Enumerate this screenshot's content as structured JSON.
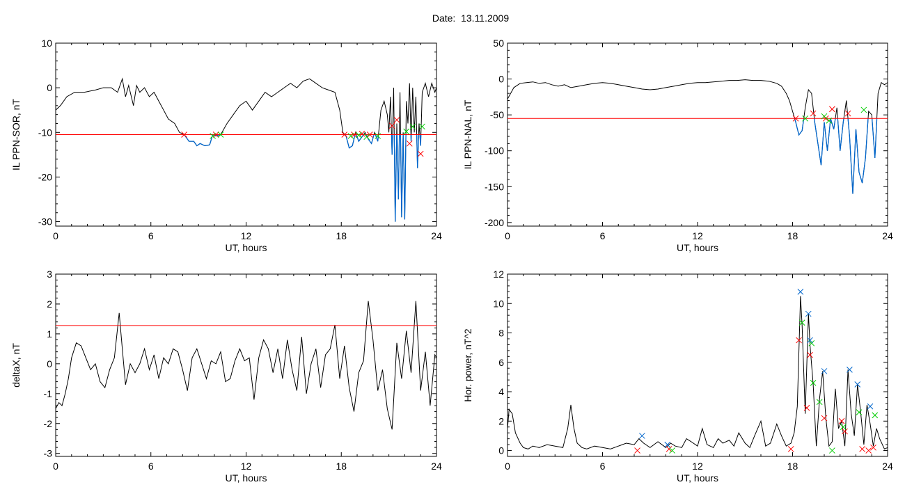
{
  "figure": {
    "title": "Date:  13.11.2009"
  },
  "chart_data": [
    {
      "type": "line",
      "ylabel": "IL PPN-SOR, nT",
      "xlabel": "UT, hours",
      "xlim": [
        0,
        24
      ],
      "ylim": [
        -31,
        10
      ],
      "xticks": [
        0,
        6,
        12,
        18,
        24
      ],
      "yticks": [
        -30,
        -20,
        -10,
        0,
        10
      ],
      "threshold": -10.5,
      "threshold_color": "#ff0000",
      "line_color": "#000000",
      "below_color": "#0066cc",
      "x": [
        0,
        0.3,
        0.7,
        1.2,
        1.8,
        2.5,
        3,
        3.5,
        3.9,
        4.2,
        4.4,
        4.6,
        4.9,
        5.1,
        5.3,
        5.6,
        5.9,
        6.2,
        6.5,
        6.8,
        7.1,
        7.5,
        7.8,
        8.1,
        8.4,
        8.7,
        8.9,
        9.1,
        9.4,
        9.7,
        9.9,
        10.1,
        10.4,
        10.8,
        11.2,
        11.6,
        12,
        12.4,
        12.8,
        13.2,
        13.6,
        14,
        14.4,
        14.8,
        15.2,
        15.6,
        16,
        16.4,
        16.8,
        17.2,
        17.6,
        17.9,
        18.1,
        18.3,
        18.5,
        18.7,
        18.9,
        19.1,
        19.3,
        19.5,
        19.7,
        19.9,
        20.1,
        20.3,
        20.5,
        20.7,
        20.9,
        21,
        21.1,
        21.2,
        21.3,
        21.4,
        21.5,
        21.6,
        21.7,
        21.8,
        21.9,
        22,
        22.1,
        22.2,
        22.3,
        22.4,
        22.5,
        22.6,
        22.7,
        22.8,
        22.9,
        23,
        23.1,
        23.3,
        23.5,
        23.7,
        23.9,
        24
      ],
      "y": [
        -5,
        -4,
        -2,
        -1,
        -1,
        -0.5,
        0,
        0,
        -1,
        2,
        -2,
        0.5,
        -4,
        0.5,
        -1,
        0,
        -2,
        -1,
        -3,
        -5,
        -7,
        -8,
        -10,
        -10.5,
        -12,
        -12,
        -13,
        -12.5,
        -13,
        -12.8,
        -10.5,
        -10.8,
        -10.5,
        -8,
        -6,
        -4,
        -3,
        -5,
        -3,
        -1,
        -2,
        -1,
        0,
        1,
        0,
        1.5,
        2,
        1,
        0,
        -0.5,
        -1,
        -5,
        -10,
        -10.8,
        -13.5,
        -13,
        -10,
        -12,
        -11,
        -10,
        -11.5,
        -12.5,
        -10,
        -12,
        -5,
        -3,
        -6,
        -10,
        -2,
        -15,
        0,
        -30,
        -8,
        -25,
        -1,
        -29,
        -10,
        -29.5,
        -3,
        -8,
        1,
        -12,
        0,
        -10,
        -2,
        -18,
        -8,
        -13,
        -1,
        1,
        -2,
        1,
        -1,
        0
      ],
      "markers_red": [
        [
          8.1,
          -10.5
        ],
        [
          10.1,
          -10.5
        ],
        [
          18.2,
          -10.5
        ],
        [
          18.8,
          -10.5
        ],
        [
          19.3,
          -10.3
        ],
        [
          19.8,
          -10.5
        ],
        [
          21.2,
          -8.5
        ],
        [
          21.5,
          -7.2
        ],
        [
          22.3,
          -12.5
        ],
        [
          23,
          -14.8
        ]
      ],
      "markers_green": [
        [
          9.9,
          -10.8
        ],
        [
          10.4,
          -10.5
        ],
        [
          18.6,
          -10.8
        ],
        [
          19.1,
          -10.6
        ],
        [
          19.6,
          -11
        ],
        [
          20.3,
          -10.8
        ],
        [
          22.1,
          -9.8
        ],
        [
          22.5,
          -8.7
        ],
        [
          23.1,
          -8.7
        ]
      ]
    },
    {
      "type": "line",
      "ylabel": "IL PPN-NAL, nT",
      "xlabel": "UT, hours",
      "xlim": [
        0,
        24
      ],
      "ylim": [
        -205,
        50
      ],
      "xticks": [
        0,
        6,
        12,
        18,
        24
      ],
      "yticks": [
        -200,
        -150,
        -100,
        -50,
        0,
        50
      ],
      "threshold": -55,
      "threshold_color": "#ff0000",
      "line_color": "#000000",
      "below_color": "#0066cc",
      "x": [
        0,
        0.2,
        0.4,
        0.8,
        1.2,
        1.6,
        2,
        2.4,
        2.8,
        3.2,
        3.6,
        4,
        4.5,
        5,
        5.5,
        6,
        6.5,
        7,
        7.5,
        8,
        8.5,
        9,
        9.5,
        10,
        10.5,
        11,
        11.5,
        12,
        12.5,
        13,
        13.5,
        14,
        14.5,
        15,
        15.5,
        16,
        16.5,
        17,
        17.3,
        17.6,
        17.8,
        18,
        18.2,
        18.4,
        18.6,
        18.8,
        19,
        19.2,
        19.4,
        19.6,
        19.8,
        20,
        20.2,
        20.4,
        20.6,
        20.8,
        21,
        21.2,
        21.4,
        21.6,
        21.8,
        22,
        22.2,
        22.4,
        22.6,
        22.8,
        23,
        23.2,
        23.4,
        23.6,
        23.8,
        24
      ],
      "y": [
        -28,
        -20,
        -12,
        -6,
        -5,
        -4,
        -6,
        -5,
        -8,
        -10,
        -8,
        -12,
        -10,
        -8,
        -6,
        -5,
        -6,
        -8,
        -10,
        -12,
        -14,
        -15,
        -14,
        -12,
        -10,
        -8,
        -6,
        -5,
        -5,
        -4,
        -3,
        -2,
        -2,
        -1,
        -2,
        -2,
        -3,
        -6,
        -10,
        -20,
        -30,
        -45,
        -60,
        -78,
        -72,
        -40,
        -15,
        -20,
        -60,
        -90,
        -120,
        -60,
        -100,
        -55,
        -70,
        -40,
        -100,
        -60,
        -30,
        -80,
        -160,
        -70,
        -130,
        -145,
        -110,
        -45,
        -50,
        -110,
        -20,
        -5,
        -8,
        -5
      ],
      "markers_red": [
        [
          18.2,
          -55
        ],
        [
          19.3,
          -48
        ],
        [
          20.1,
          -55
        ],
        [
          20.5,
          -42
        ],
        [
          21.5,
          -48
        ]
      ],
      "markers_green": [
        [
          18.8,
          -55
        ],
        [
          20,
          -52
        ],
        [
          20.3,
          -58
        ],
        [
          22.5,
          -43
        ]
      ]
    },
    {
      "type": "line",
      "ylabel": "deltaX, nT",
      "xlabel": "UT, hours",
      "xlim": [
        0,
        24
      ],
      "ylim": [
        -3.1,
        3
      ],
      "xticks": [
        0,
        6,
        12,
        18,
        24
      ],
      "yticks": [
        -3,
        -2,
        -1,
        0,
        1,
        2,
        3
      ],
      "threshold": 1.28,
      "threshold_color": "#ff0000",
      "line_color": "#000000",
      "x": [
        0,
        0.2,
        0.4,
        0.6,
        0.8,
        1,
        1.3,
        1.6,
        1.9,
        2.2,
        2.5,
        2.8,
        3.1,
        3.4,
        3.7,
        4,
        4.2,
        4.4,
        4.7,
        5,
        5.3,
        5.6,
        5.9,
        6.2,
        6.5,
        6.8,
        7.1,
        7.4,
        7.7,
        8,
        8.3,
        8.6,
        8.9,
        9.2,
        9.5,
        9.8,
        10.1,
        10.4,
        10.7,
        11,
        11.3,
        11.6,
        11.9,
        12.2,
        12.5,
        12.8,
        13.1,
        13.4,
        13.7,
        14,
        14.3,
        14.6,
        14.9,
        15.2,
        15.5,
        15.8,
        16.1,
        16.4,
        16.7,
        17,
        17.3,
        17.6,
        17.9,
        18.2,
        18.5,
        18.8,
        19.1,
        19.4,
        19.7,
        20,
        20.3,
        20.6,
        20.9,
        21.2,
        21.5,
        21.8,
        22.1,
        22.4,
        22.7,
        23,
        23.3,
        23.6,
        23.9,
        24
      ],
      "y": [
        -1.5,
        -1.3,
        -1.4,
        -1,
        -0.5,
        0.2,
        0.7,
        0.6,
        0.2,
        -0.2,
        0,
        -0.6,
        -0.8,
        -0.2,
        0.2,
        1.7,
        0.5,
        -0.7,
        0,
        -0.3,
        0,
        0.5,
        -0.2,
        0.3,
        -0.5,
        0.2,
        0,
        0.5,
        0.4,
        -0.2,
        -0.9,
        0.2,
        0.5,
        0,
        -0.5,
        0.1,
        0,
        0.4,
        -0.6,
        -0.5,
        0.1,
        0.5,
        0.1,
        0.2,
        -1.2,
        0.2,
        0.8,
        0.5,
        -0.3,
        0.5,
        -0.5,
        0.8,
        -0.2,
        -0.9,
        0.9,
        -1,
        0,
        0.5,
        -0.8,
        0.3,
        0.5,
        1.3,
        -0.5,
        0.6,
        -0.8,
        -1.6,
        -0.3,
        0.1,
        2.1,
        0.8,
        -0.9,
        -0.2,
        -1.5,
        -2.2,
        0.7,
        -0.5,
        1.1,
        -0.3,
        2.1,
        -0.9,
        0.4,
        -1.4,
        0.3,
        0.2
      ]
    },
    {
      "type": "line",
      "ylabel": "Hor. power, nT^2",
      "xlabel": "UT, hours",
      "xlim": [
        0,
        24
      ],
      "ylim": [
        -0.4,
        12
      ],
      "xticks": [
        0,
        6,
        12,
        18,
        24
      ],
      "yticks": [
        0,
        2,
        4,
        6,
        8,
        10,
        12
      ],
      "line_color": "#000000",
      "x": [
        0,
        0.1,
        0.3,
        0.5,
        0.8,
        1,
        1.3,
        1.6,
        2,
        2.5,
        3,
        3.5,
        3.8,
        4,
        4.2,
        4.4,
        4.7,
        5,
        5.5,
        6,
        6.5,
        7,
        7.5,
        8,
        8.3,
        8.6,
        9,
        9.5,
        10,
        10.3,
        10.6,
        11,
        11.3,
        11.6,
        12,
        12.3,
        12.6,
        13,
        13.3,
        13.6,
        14,
        14.3,
        14.6,
        15,
        15.3,
        15.6,
        16,
        16.3,
        16.6,
        17,
        17.3,
        17.6,
        17.9,
        18.1,
        18.3,
        18.5,
        18.6,
        18.8,
        19,
        19.1,
        19.3,
        19.5,
        19.7,
        19.9,
        20.1,
        20.3,
        20.5,
        20.7,
        20.9,
        21.1,
        21.3,
        21.5,
        21.7,
        21.9,
        22.1,
        22.3,
        22.5,
        22.7,
        22.9,
        23.1,
        23.3,
        23.5,
        23.8,
        24
      ],
      "y": [
        1.5,
        2.8,
        2.5,
        1.2,
        0.5,
        0.2,
        0.1,
        0.3,
        0.2,
        0.4,
        0.3,
        0.2,
        1.5,
        3.1,
        1.5,
        0.5,
        0.2,
        0.1,
        0.3,
        0.2,
        0.1,
        0.3,
        0.5,
        0.4,
        0.8,
        0.5,
        0.2,
        0.6,
        0.2,
        0.5,
        0.3,
        0.2,
        0.8,
        0.6,
        0.3,
        1.5,
        0.4,
        0.2,
        0.8,
        0.5,
        0.7,
        0.3,
        1.2,
        0.5,
        0.2,
        1,
        2,
        0.3,
        0.5,
        1.8,
        1,
        0.3,
        0.5,
        1.2,
        3,
        10.5,
        8.5,
        2.5,
        9.3,
        7.2,
        4.5,
        0.3,
        3.5,
        5.4,
        2.2,
        0.3,
        0.6,
        4.2,
        1.5,
        2,
        0.3,
        5.5,
        2.5,
        1,
        4.5,
        2.6,
        0.4,
        3.1,
        1.8,
        0.3,
        1.5,
        0.8,
        0.1,
        0.2
      ],
      "markers_blue": [
        [
          8.5,
          1
        ],
        [
          10.1,
          0.4
        ],
        [
          18.5,
          10.8
        ],
        [
          19,
          9.3
        ],
        [
          19.1,
          7.5
        ],
        [
          20,
          5.4
        ],
        [
          21.6,
          5.5
        ],
        [
          22.1,
          4.5
        ],
        [
          22.9,
          3
        ]
      ],
      "markers_red": [
        [
          8.2,
          0
        ],
        [
          10.2,
          0.1
        ],
        [
          17.9,
          0.1
        ],
        [
          18.4,
          7.5
        ],
        [
          18.9,
          2.9
        ],
        [
          19.1,
          6.5
        ],
        [
          20,
          2.2
        ],
        [
          21.1,
          2
        ],
        [
          21.3,
          1.3
        ],
        [
          22.4,
          0.1
        ],
        [
          22.8,
          0
        ],
        [
          23.1,
          0.2
        ]
      ],
      "markers_green": [
        [
          10.4,
          0
        ],
        [
          18.6,
          8.7
        ],
        [
          19.2,
          7.3
        ],
        [
          19.3,
          4.6
        ],
        [
          19.7,
          3.3
        ],
        [
          20.5,
          0
        ],
        [
          21.2,
          1.6
        ],
        [
          22.2,
          2.6
        ],
        [
          23.2,
          2.4
        ]
      ]
    }
  ]
}
